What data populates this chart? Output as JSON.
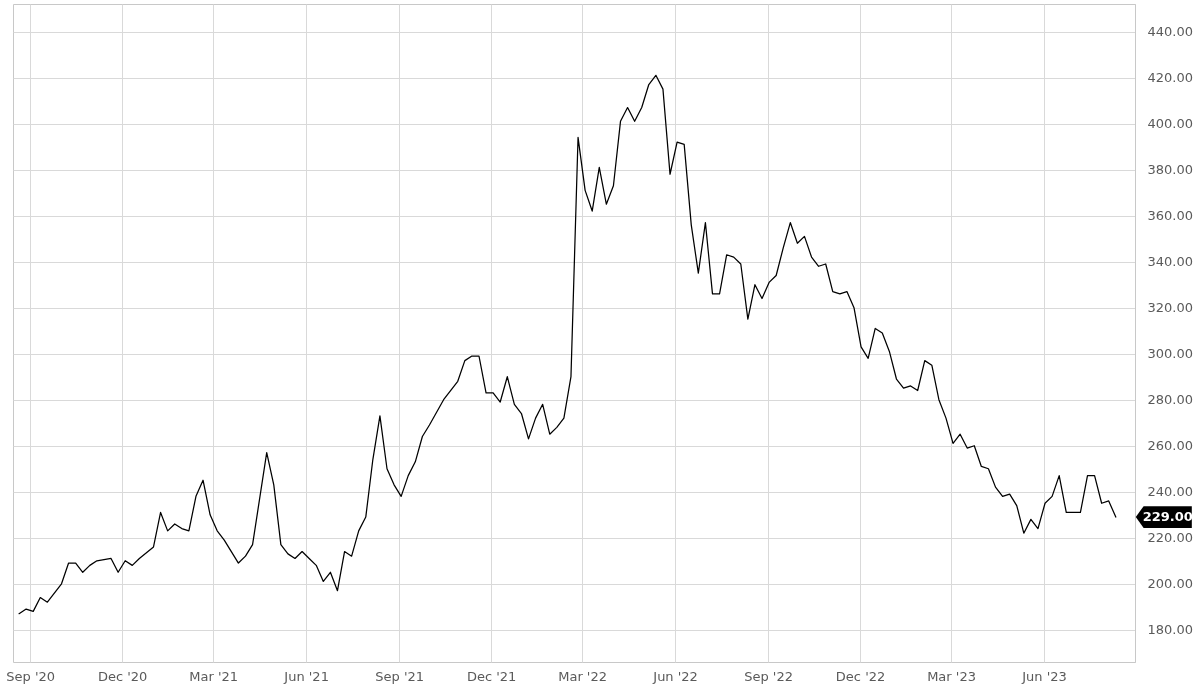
{
  "chart_data": {
    "type": "line",
    "x": [
      "2020-08-21",
      "2020-08-28",
      "2020-09-04",
      "2020-09-11",
      "2020-09-18",
      "2020-10-02",
      "2020-10-09",
      "2020-10-16",
      "2020-10-23",
      "2020-10-30",
      "2020-11-06",
      "2020-11-20",
      "2020-11-27",
      "2020-12-04",
      "2020-12-11",
      "2020-12-18",
      "2021-01-01",
      "2021-01-08",
      "2021-01-15",
      "2021-01-22",
      "2021-01-29",
      "2021-02-05",
      "2021-02-12",
      "2021-02-19",
      "2021-02-26",
      "2021-03-05",
      "2021-03-12",
      "2021-03-19",
      "2021-03-26",
      "2021-04-02",
      "2021-04-09",
      "2021-04-23",
      "2021-04-30",
      "2021-05-07",
      "2021-05-14",
      "2021-05-21",
      "2021-05-28",
      "2021-06-04",
      "2021-06-11",
      "2021-06-18",
      "2021-06-25",
      "2021-07-02",
      "2021-07-09",
      "2021-07-16",
      "2021-07-23",
      "2021-07-30",
      "2021-08-06",
      "2021-08-13",
      "2021-08-20",
      "2021-08-27",
      "2021-09-03",
      "2021-09-10",
      "2021-09-17",
      "2021-09-24",
      "2021-10-01",
      "2021-10-15",
      "2021-10-29",
      "2021-11-05",
      "2021-11-12",
      "2021-11-19",
      "2021-11-26",
      "2021-12-03",
      "2021-12-10",
      "2021-12-17",
      "2021-12-24",
      "2021-12-31",
      "2022-01-07",
      "2022-01-14",
      "2022-01-21",
      "2022-01-28",
      "2022-02-04",
      "2022-02-11",
      "2022-02-18",
      "2022-02-25",
      "2022-03-04",
      "2022-03-11",
      "2022-03-18",
      "2022-03-25",
      "2022-04-01",
      "2022-04-08",
      "2022-04-15",
      "2022-04-22",
      "2022-04-29",
      "2022-05-06",
      "2022-05-13",
      "2022-05-20",
      "2022-05-27",
      "2022-06-03",
      "2022-06-10",
      "2022-06-17",
      "2022-06-24",
      "2022-07-01",
      "2022-07-08",
      "2022-07-15",
      "2022-07-22",
      "2022-07-29",
      "2022-08-05",
      "2022-08-12",
      "2022-08-19",
      "2022-08-26",
      "2022-09-02",
      "2022-09-09",
      "2022-09-16",
      "2022-09-23",
      "2022-09-30",
      "2022-10-07",
      "2022-10-14",
      "2022-10-21",
      "2022-10-28",
      "2022-11-04",
      "2022-11-11",
      "2022-11-18",
      "2022-11-25",
      "2022-12-02",
      "2022-12-09",
      "2022-12-16",
      "2022-12-23",
      "2022-12-30",
      "2023-01-06",
      "2023-01-13",
      "2023-01-20",
      "2023-01-27",
      "2023-02-03",
      "2023-02-10",
      "2023-02-17",
      "2023-02-24",
      "2023-03-03",
      "2023-03-10",
      "2023-03-17",
      "2023-03-24",
      "2023-03-31",
      "2023-04-07",
      "2023-04-14",
      "2023-04-21",
      "2023-04-28",
      "2023-05-05",
      "2023-05-12",
      "2023-05-19",
      "2023-05-26",
      "2023-06-02",
      "2023-06-09",
      "2023-06-16",
      "2023-06-23",
      "2023-06-30",
      "2023-07-07",
      "2023-07-14",
      "2023-07-21",
      "2023-07-28",
      "2023-08-04",
      "2023-08-11"
    ],
    "series": [
      {
        "color": "#000000",
        "values": [
          187,
          189,
          188,
          194,
          192,
          200,
          209,
          209,
          205,
          208,
          210,
          211,
          205,
          210,
          208,
          211,
          216,
          231,
          223,
          226,
          224,
          223,
          238,
          245,
          230,
          223,
          219,
          214,
          209,
          212,
          217,
          257,
          243,
          217,
          213,
          211,
          214,
          211,
          208,
          201,
          205,
          197,
          214,
          212,
          223,
          229,
          254,
          273,
          250,
          243,
          238,
          247,
          253,
          264,
          269,
          280,
          288,
          297,
          299,
          299,
          283,
          283,
          279,
          290,
          278,
          274,
          263,
          272,
          278,
          265,
          268,
          272,
          290,
          394,
          371,
          362,
          381,
          365,
          373,
          401,
          407,
          401,
          407,
          417,
          421,
          415,
          378,
          392,
          391,
          356,
          335,
          357,
          326,
          326,
          343,
          342,
          339,
          315,
          330,
          324,
          331,
          334,
          346,
          357,
          348,
          351,
          342,
          338,
          339,
          327,
          326,
          327,
          320,
          303,
          298,
          311,
          309,
          301,
          289,
          285,
          286,
          284,
          297,
          295,
          280,
          272,
          261,
          265,
          259,
          260,
          251,
          250,
          242,
          238,
          239,
          234,
          222,
          228,
          224,
          235,
          238,
          247,
          231,
          231,
          231,
          247,
          247,
          235,
          236,
          229
        ]
      }
    ],
    "xlim": [
      "2020-08-15",
      "2023-08-30"
    ],
    "xticks": [
      {
        "value": "2020-09",
        "label": "Sep '20"
      },
      {
        "value": "2020-12",
        "label": "Dec '20"
      },
      {
        "value": "2021-03",
        "label": "Mar '21"
      },
      {
        "value": "2021-06",
        "label": "Jun '21"
      },
      {
        "value": "2021-09",
        "label": "Sep '21"
      },
      {
        "value": "2021-12",
        "label": "Dec '21"
      },
      {
        "value": "2022-03",
        "label": "Mar '22"
      },
      {
        "value": "2022-06",
        "label": "Jun '22"
      },
      {
        "value": "2022-09",
        "label": "Sep '22"
      },
      {
        "value": "2022-12",
        "label": "Dec '22"
      },
      {
        "value": "2023-03",
        "label": "Mar '23"
      },
      {
        "value": "2023-06",
        "label": "Jun '23"
      }
    ],
    "ylim": [
      166,
      452
    ],
    "yticks": [
      {
        "value": 180,
        "label": "180.00"
      },
      {
        "value": 200,
        "label": "200.00"
      },
      {
        "value": 220,
        "label": "220.00"
      },
      {
        "value": 240,
        "label": "240.00"
      },
      {
        "value": 260,
        "label": "260.00"
      },
      {
        "value": 280,
        "label": "280.00"
      },
      {
        "value": 300,
        "label": "300.00"
      },
      {
        "value": 320,
        "label": "320.00"
      },
      {
        "value": 340,
        "label": "340.00"
      },
      {
        "value": 360,
        "label": "360.00"
      },
      {
        "value": 380,
        "label": "380.00"
      },
      {
        "value": 400,
        "label": "400.00"
      },
      {
        "value": 420,
        "label": "420.00"
      },
      {
        "value": 440,
        "label": "440.00"
      }
    ],
    "annotations": [
      {
        "text": "229.00",
        "x": "2023-08-11",
        "y": 229
      }
    ],
    "grid": true
  }
}
